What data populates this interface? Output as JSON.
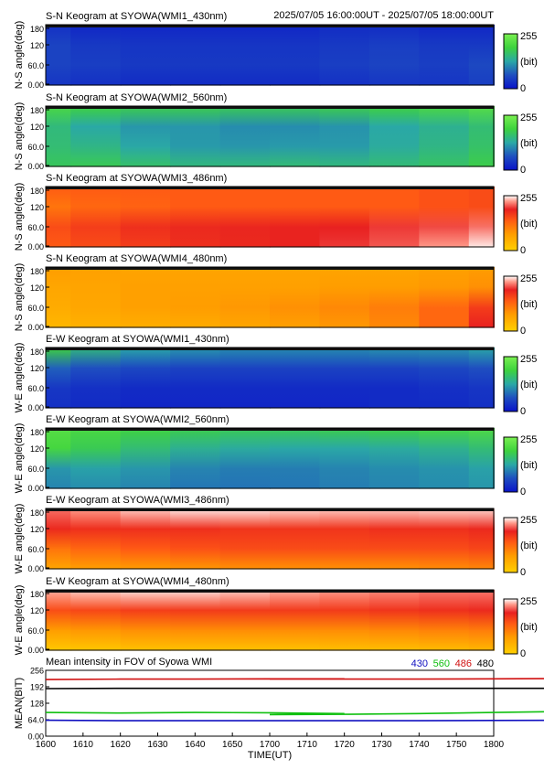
{
  "header": {
    "time_range": "2025/07/05 16:00:00UT - 2025/07/05 18:00:00UT"
  },
  "colorbar": {
    "max_label": "255",
    "unit_label": "(bit)",
    "min_label": "0"
  },
  "chart_data": [
    {
      "type": "heatmap",
      "title": "S-N Keogram at SYOWA(WMI1_430nm)",
      "ylabel": "N-S angle(deg)",
      "yticks": [
        "0.00",
        "60.0",
        "120",
        "180"
      ],
      "ylim": [
        0,
        180
      ],
      "xlim": [
        1600,
        1800
      ],
      "zlim": [
        0,
        255
      ],
      "scale": [
        [
          0,
          "#0a13c9"
        ],
        [
          0.25,
          "#1f4fc0"
        ],
        [
          0.5,
          "#2aa8a6"
        ],
        [
          0.75,
          "#3ed23e"
        ],
        [
          1,
          "#7af050"
        ]
      ],
      "rows": [
        [
          0.12,
          0.08,
          0.08,
          0.08,
          0.08,
          0.08,
          0.1,
          0.1,
          0.08,
          0.08
        ],
        [
          0.2,
          0.16,
          0.14,
          0.14,
          0.14,
          0.14,
          0.16,
          0.18,
          0.16,
          0.16
        ],
        [
          0.2,
          0.18,
          0.16,
          0.16,
          0.16,
          0.16,
          0.18,
          0.2,
          0.18,
          0.22
        ],
        [
          0.14,
          0.12,
          0.1,
          0.1,
          0.1,
          0.1,
          0.12,
          0.14,
          0.14,
          0.18
        ]
      ]
    },
    {
      "type": "heatmap",
      "title": "S-N Keogram at SYOWA(WMI2_560nm)",
      "ylabel": "N-S angle(deg)",
      "yticks": [
        "0.00",
        "60.0",
        "120",
        "180"
      ],
      "ylim": [
        0,
        180
      ],
      "xlim": [
        1600,
        1800
      ],
      "zlim": [
        0,
        255
      ],
      "scale": [
        [
          0,
          "#0a13c9"
        ],
        [
          0.25,
          "#1f4fc0"
        ],
        [
          0.5,
          "#2aa8a6"
        ],
        [
          0.75,
          "#3ed23e"
        ],
        [
          1,
          "#7af050"
        ]
      ],
      "rows": [
        [
          0.8,
          0.75,
          0.72,
          0.72,
          0.7,
          0.7,
          0.72,
          0.75,
          0.8,
          0.85
        ],
        [
          0.6,
          0.5,
          0.45,
          0.45,
          0.42,
          0.42,
          0.44,
          0.5,
          0.55,
          0.62
        ],
        [
          0.62,
          0.58,
          0.5,
          0.46,
          0.45,
          0.46,
          0.46,
          0.52,
          0.58,
          0.65
        ],
        [
          0.68,
          0.7,
          0.65,
          0.6,
          0.6,
          0.62,
          0.6,
          0.62,
          0.66,
          0.72
        ]
      ]
    },
    {
      "type": "heatmap",
      "title": "S-N Keogram at SYOWA(WMI3_486nm)",
      "ylabel": "N-S angle(deg)",
      "yticks": [
        "0.00",
        "60.0",
        "120",
        "180"
      ],
      "ylim": [
        0,
        180
      ],
      "xlim": [
        1600,
        1800
      ],
      "zlim": [
        0,
        255
      ],
      "scale": [
        [
          0,
          "#ffd000"
        ],
        [
          0.3,
          "#ff9d00"
        ],
        [
          0.55,
          "#ff5a14"
        ],
        [
          0.75,
          "#e82020"
        ],
        [
          0.9,
          "#ff9a8a"
        ],
        [
          1,
          "#ffffff"
        ]
      ],
      "rows": [
        [
          0.55,
          0.55,
          0.55,
          0.55,
          0.55,
          0.55,
          0.55,
          0.55,
          0.58,
          0.6
        ],
        [
          0.45,
          0.5,
          0.52,
          0.55,
          0.55,
          0.55,
          0.55,
          0.55,
          0.58,
          0.6
        ],
        [
          0.6,
          0.65,
          0.7,
          0.72,
          0.73,
          0.74,
          0.75,
          0.78,
          0.8,
          0.85
        ],
        [
          0.55,
          0.6,
          0.65,
          0.7,
          0.72,
          0.74,
          0.78,
          0.82,
          0.9,
          0.98
        ]
      ]
    },
    {
      "type": "heatmap",
      "title": "S-N Keogram at SYOWA(WMI4_480nm)",
      "ylabel": "N-S angle(deg)",
      "yticks": [
        "0.00",
        "60.0",
        "120",
        "180"
      ],
      "ylim": [
        0,
        180
      ],
      "xlim": [
        1600,
        1800
      ],
      "zlim": [
        0,
        255
      ],
      "scale": [
        [
          0,
          "#ffd000"
        ],
        [
          0.3,
          "#ff9d00"
        ],
        [
          0.55,
          "#ff5a14"
        ],
        [
          0.75,
          "#e82020"
        ],
        [
          0.9,
          "#ff9a8a"
        ],
        [
          1,
          "#ffffff"
        ]
      ],
      "rows": [
        [
          0.3,
          0.28,
          0.26,
          0.26,
          0.26,
          0.26,
          0.26,
          0.26,
          0.28,
          0.3
        ],
        [
          0.25,
          0.26,
          0.28,
          0.28,
          0.28,
          0.28,
          0.3,
          0.3,
          0.32,
          0.35
        ],
        [
          0.22,
          0.25,
          0.28,
          0.3,
          0.32,
          0.35,
          0.38,
          0.42,
          0.5,
          0.65
        ],
        [
          0.15,
          0.18,
          0.2,
          0.22,
          0.25,
          0.28,
          0.32,
          0.38,
          0.5,
          0.75
        ]
      ]
    },
    {
      "type": "heatmap",
      "title": "E-W Keogram at SYOWA(WMI1_430nm)",
      "ylabel": "W-E angle(deg)",
      "yticks": [
        "0.00",
        "60.0",
        "120",
        "180"
      ],
      "ylim": [
        0,
        180
      ],
      "xlim": [
        1600,
        1800
      ],
      "zlim": [
        0,
        255
      ],
      "scale": [
        [
          0,
          "#0a13c9"
        ],
        [
          0.25,
          "#1f4fc0"
        ],
        [
          0.5,
          "#2aa8a6"
        ],
        [
          0.75,
          "#3ed23e"
        ],
        [
          1,
          "#7af050"
        ]
      ],
      "rows": [
        [
          0.75,
          0.6,
          0.5,
          0.45,
          0.42,
          0.42,
          0.42,
          0.44,
          0.45,
          0.5
        ],
        [
          0.3,
          0.25,
          0.22,
          0.2,
          0.2,
          0.2,
          0.2,
          0.2,
          0.22,
          0.25
        ],
        [
          0.15,
          0.12,
          0.1,
          0.1,
          0.1,
          0.1,
          0.1,
          0.1,
          0.12,
          0.14
        ],
        [
          0.12,
          0.1,
          0.08,
          0.08,
          0.08,
          0.08,
          0.08,
          0.1,
          0.1,
          0.12
        ]
      ]
    },
    {
      "type": "heatmap",
      "title": "E-W Keogram at SYOWA(WMI2_560nm)",
      "ylabel": "W-E angle(deg)",
      "yticks": [
        "0.00",
        "60.0",
        "120",
        "180"
      ],
      "ylim": [
        0,
        180
      ],
      "xlim": [
        1600,
        1800
      ],
      "zlim": [
        0,
        255
      ],
      "scale": [
        [
          0,
          "#0a13c9"
        ],
        [
          0.25,
          "#1f4fc0"
        ],
        [
          0.5,
          "#2aa8a6"
        ],
        [
          0.75,
          "#3ed23e"
        ],
        [
          1,
          "#7af050"
        ]
      ],
      "rows": [
        [
          0.85,
          0.8,
          0.76,
          0.72,
          0.7,
          0.7,
          0.72,
          0.74,
          0.78,
          0.82
        ],
        [
          0.78,
          0.7,
          0.62,
          0.55,
          0.52,
          0.5,
          0.5,
          0.52,
          0.56,
          0.62
        ],
        [
          0.45,
          0.48,
          0.45,
          0.4,
          0.38,
          0.38,
          0.4,
          0.42,
          0.44,
          0.48
        ],
        [
          0.4,
          0.42,
          0.4,
          0.36,
          0.35,
          0.36,
          0.38,
          0.4,
          0.42,
          0.45
        ]
      ]
    },
    {
      "type": "heatmap",
      "title": "E-W Keogram at SYOWA(WMI3_486nm)",
      "ylabel": "W-E angle(deg)",
      "yticks": [
        "0.00",
        "60.0",
        "120",
        "180"
      ],
      "ylim": [
        0,
        180
      ],
      "xlim": [
        1600,
        1800
      ],
      "zlim": [
        0,
        255
      ],
      "scale": [
        [
          0,
          "#ffd000"
        ],
        [
          0.3,
          "#ff9d00"
        ],
        [
          0.55,
          "#ff5a14"
        ],
        [
          0.75,
          "#e82020"
        ],
        [
          0.9,
          "#ff9a8a"
        ],
        [
          1,
          "#ffffff"
        ]
      ],
      "rows": [
        [
          0.85,
          0.9,
          0.95,
          0.98,
          0.98,
          0.96,
          0.95,
          0.95,
          0.96,
          0.96
        ],
        [
          0.72,
          0.7,
          0.7,
          0.7,
          0.68,
          0.68,
          0.68,
          0.7,
          0.7,
          0.72
        ],
        [
          0.45,
          0.5,
          0.55,
          0.58,
          0.6,
          0.6,
          0.6,
          0.6,
          0.6,
          0.62
        ],
        [
          0.25,
          0.28,
          0.3,
          0.32,
          0.34,
          0.34,
          0.34,
          0.34,
          0.36,
          0.38
        ]
      ]
    },
    {
      "type": "heatmap",
      "title": "E-W Keogram at SYOWA(WMI4_480nm)",
      "ylabel": "W-E angle(deg)",
      "yticks": [
        "0.00",
        "60.0",
        "120",
        "180"
      ],
      "ylim": [
        0,
        180
      ],
      "xlim": [
        1600,
        1800
      ],
      "zlim": [
        0,
        255
      ],
      "scale": [
        [
          0,
          "#ffd000"
        ],
        [
          0.3,
          "#ff9d00"
        ],
        [
          0.55,
          "#ff5a14"
        ],
        [
          0.75,
          "#e82020"
        ],
        [
          0.9,
          "#ff9a8a"
        ],
        [
          1,
          "#ffffff"
        ]
      ],
      "rows": [
        [
          0.92,
          0.95,
          0.97,
          0.97,
          0.95,
          0.92,
          0.9,
          0.88,
          0.86,
          0.86
        ],
        [
          0.6,
          0.62,
          0.65,
          0.66,
          0.66,
          0.66,
          0.66,
          0.68,
          0.7,
          0.72
        ],
        [
          0.3,
          0.32,
          0.35,
          0.36,
          0.36,
          0.36,
          0.36,
          0.38,
          0.4,
          0.42
        ],
        [
          0.05,
          0.06,
          0.08,
          0.08,
          0.08,
          0.08,
          0.1,
          0.1,
          0.12,
          0.14
        ]
      ]
    },
    {
      "type": "line",
      "title": "Mean intensity in FOV of Syowa WMI",
      "xlabel": "TIME(UT)",
      "ylabel": "MEAN(BIT)",
      "xlim": [
        1600,
        1800
      ],
      "ylim": [
        0,
        256
      ],
      "xticks": [
        "1600",
        "1610",
        "1620",
        "1630",
        "1640",
        "1650",
        "1700",
        "1710",
        "1720",
        "1730",
        "1740",
        "1750",
        "1800"
      ],
      "yticks": [
        "0.00",
        "64.0",
        "128",
        "192",
        "256"
      ],
      "series": [
        {
          "name": "430",
          "color": "#1010c0",
          "x": [
            1600,
            1620,
            1640,
            1660,
            1680,
            1700,
            1720,
            1740,
            1760,
            1780,
            1795
          ],
          "values": [
            62,
            60,
            60,
            60,
            60,
            60,
            60,
            60,
            61,
            62,
            62
          ]
        },
        {
          "name": "560",
          "color": "#10c010",
          "x": [
            1600,
            1620,
            1640,
            1660,
            1680,
            1700,
            1720,
            1740,
            1760,
            1780,
            1795
          ],
          "values": [
            92,
            90,
            92,
            91,
            88,
            84,
            85,
            88,
            92,
            96,
            98
          ]
        },
        {
          "name": "486",
          "color": "#d01010",
          "x": [
            1600,
            1620,
            1640,
            1660,
            1680,
            1700,
            1720,
            1740,
            1760,
            1780,
            1795
          ],
          "values": [
            220,
            222,
            222,
            223,
            223,
            222,
            222,
            222,
            223,
            224,
            224
          ]
        },
        {
          "name": "480",
          "color": "#000000",
          "x": [
            1600,
            1620,
            1640,
            1660,
            1680,
            1700,
            1720,
            1740,
            1760,
            1780,
            1795
          ],
          "values": [
            185,
            186,
            186,
            186,
            186,
            186,
            186,
            186,
            186,
            186,
            186
          ]
        }
      ]
    }
  ]
}
